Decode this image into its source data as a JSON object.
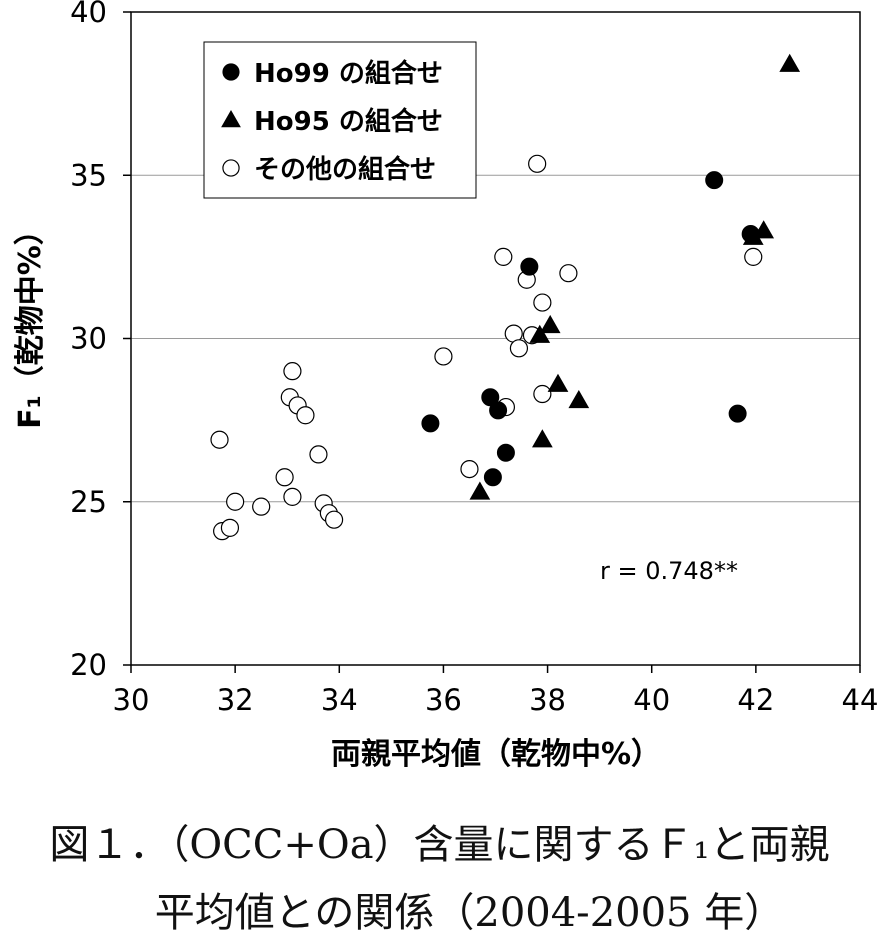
{
  "chart_data": {
    "type": "scatter",
    "xlabel": "両親平均値（乾物中%）",
    "ylabel": "F₁（乾物中%）",
    "xlim": [
      30,
      44
    ],
    "ylim": [
      20,
      40
    ],
    "x_ticks": [
      "30",
      "32",
      "34",
      "36",
      "38",
      "40",
      "42",
      "44"
    ],
    "y_ticks": [
      "20",
      "25",
      "30",
      "35",
      "40"
    ],
    "grid": "horizontal",
    "legend_position": "top-left",
    "annotation": "r = 0.748**",
    "series": [
      {
        "name": "Ho99 の組合せ",
        "marker": "filled-circle",
        "color": "#000000",
        "points": [
          [
            35.75,
            27.4
          ],
          [
            36.9,
            28.2
          ],
          [
            37.05,
            27.8
          ],
          [
            36.95,
            25.75
          ],
          [
            37.2,
            26.5
          ],
          [
            37.65,
            32.2
          ],
          [
            41.2,
            34.85
          ],
          [
            41.9,
            33.2
          ],
          [
            41.65,
            27.7
          ]
        ]
      },
      {
        "name": "Ho95 の組合せ",
        "marker": "filled-triangle",
        "color": "#000000",
        "points": [
          [
            36.7,
            25.3
          ],
          [
            37.9,
            26.9
          ],
          [
            37.85,
            30.1
          ],
          [
            38.05,
            30.4
          ],
          [
            38.2,
            28.6
          ],
          [
            38.6,
            28.1
          ],
          [
            41.95,
            33.1
          ],
          [
            42.15,
            33.3
          ],
          [
            42.65,
            38.4
          ]
        ]
      },
      {
        "name": "その他の組合せ",
        "marker": "open-circle",
        "color": "#000000",
        "points": [
          [
            31.7,
            26.9
          ],
          [
            31.75,
            24.1
          ],
          [
            31.9,
            24.2
          ],
          [
            32.0,
            25.0
          ],
          [
            32.5,
            24.85
          ],
          [
            32.95,
            25.75
          ],
          [
            33.05,
            28.2
          ],
          [
            33.1,
            29.0
          ],
          [
            33.1,
            25.15
          ],
          [
            33.2,
            27.95
          ],
          [
            33.35,
            27.65
          ],
          [
            33.6,
            26.45
          ],
          [
            33.7,
            24.95
          ],
          [
            33.8,
            24.65
          ],
          [
            33.9,
            24.45
          ],
          [
            36.0,
            29.45
          ],
          [
            36.5,
            26.0
          ],
          [
            37.15,
            32.5
          ],
          [
            37.2,
            27.9
          ],
          [
            37.35,
            30.15
          ],
          [
            37.45,
            29.7
          ],
          [
            37.6,
            31.8
          ],
          [
            37.7,
            30.1
          ],
          [
            37.8,
            35.35
          ],
          [
            37.9,
            31.1
          ],
          [
            37.9,
            28.3
          ],
          [
            38.4,
            32.0
          ],
          [
            41.95,
            32.5
          ]
        ]
      }
    ]
  },
  "caption": {
    "line1": "図１．（OCC+Oa）含量に関するＦ₁と両親",
    "line2": "平均値との関係（2004-2005 年）"
  }
}
